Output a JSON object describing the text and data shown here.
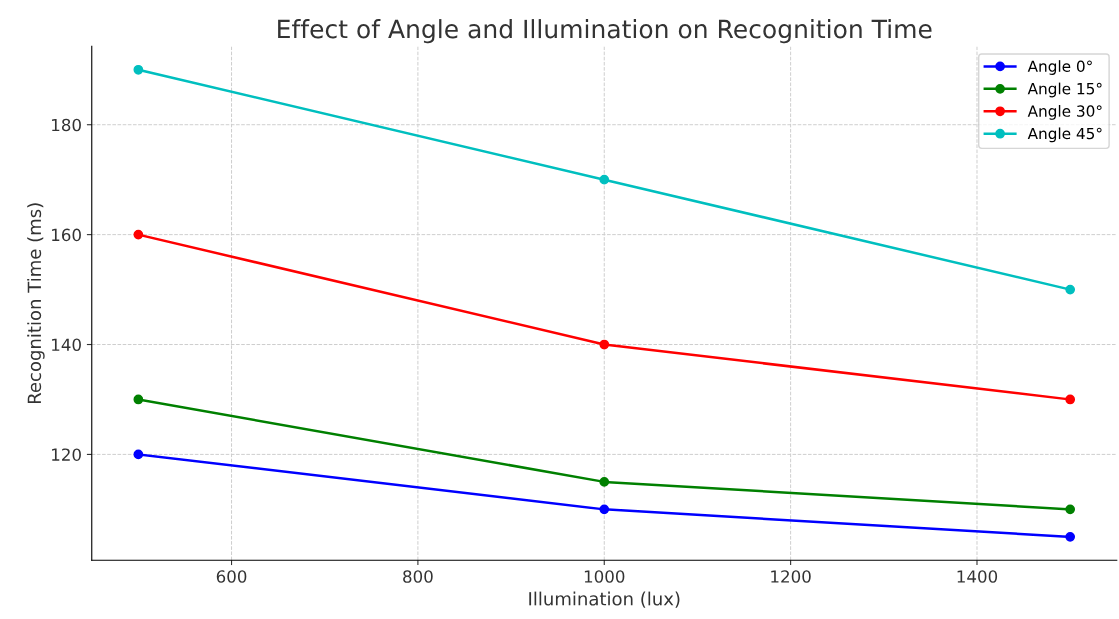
{
  "chart_data": {
    "type": "line",
    "title": "Effect of Angle and Illumination on Recognition Time",
    "xlabel": "Illumination (lux)",
    "ylabel": "Recognition Time (ms)",
    "x": [
      500,
      1000,
      1500
    ],
    "series": [
      {
        "name": "Angle 0°",
        "color": "#0000ff",
        "values": [
          120,
          110,
          105
        ]
      },
      {
        "name": "Angle 15°",
        "color": "#008000",
        "values": [
          130,
          115,
          110
        ]
      },
      {
        "name": "Angle 30°",
        "color": "#ff0000",
        "values": [
          160,
          140,
          130
        ]
      },
      {
        "name": "Angle 45°",
        "color": "#00bfbf",
        "values": [
          190,
          170,
          150
        ]
      }
    ],
    "xlim": [
      450,
      1550
    ],
    "ylim": [
      100.75,
      194.25
    ],
    "xticks": [
      600,
      800,
      1000,
      1200,
      1400
    ],
    "yticks": [
      120,
      140,
      160,
      180
    ],
    "grid": true,
    "legend": "top right",
    "marker": "circle",
    "line_style": "solid"
  }
}
